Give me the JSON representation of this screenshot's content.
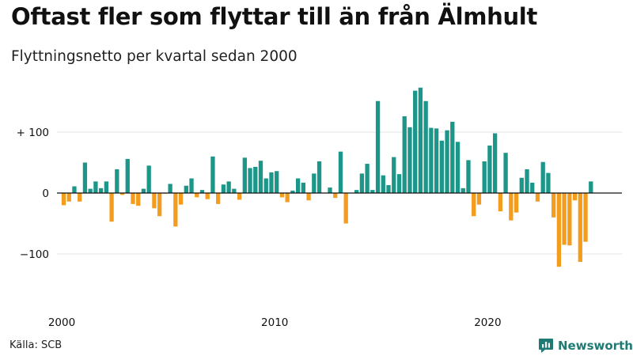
{
  "header": {
    "title": "Oftast fler som flyttar till än från Älmhult",
    "subtitle": "Flyttningsnetto per kvartal sedan 2000"
  },
  "footer": {
    "source": "Källa: SCB",
    "brand": "Newsworthy"
  },
  "colors": {
    "positive": "#1b9688",
    "negative": "#f39c1d",
    "grid": "#e3e3e3",
    "zero": "#111111",
    "brand": "#1f7a74"
  },
  "chart_data": {
    "type": "bar",
    "title": "Oftast fler som flyttar till än från Älmhult",
    "subtitle": "Flyttningsnetto per kvartal sedan 2000",
    "start_year": 2000,
    "period": "quarter",
    "ylim": [
      -150,
      175
    ],
    "yticks": [
      {
        "value": 100,
        "label": "+ 100"
      },
      {
        "value": 0,
        "label": "0"
      },
      {
        "value": -100,
        "label": "−100"
      }
    ],
    "xticks": [
      {
        "year": 2000,
        "label": "2000"
      },
      {
        "year": 2010,
        "label": "2010"
      },
      {
        "year": 2020,
        "label": "2020"
      }
    ],
    "values": [
      -20,
      -14,
      11,
      -14,
      50,
      7,
      19,
      8,
      19,
      -47,
      39,
      -3,
      56,
      -18,
      -21,
      7,
      45,
      -25,
      -38,
      -1,
      15,
      -55,
      -19,
      12,
      24,
      -7,
      5,
      -10,
      60,
      -18,
      14,
      19,
      7,
      -11,
      58,
      41,
      43,
      53,
      24,
      34,
      36,
      -7,
      -15,
      4,
      24,
      17,
      -12,
      32,
      52,
      0,
      9,
      -8,
      68,
      -50,
      0,
      5,
      32,
      48,
      5,
      151,
      29,
      13,
      59,
      31,
      126,
      108,
      168,
      173,
      151,
      107,
      106,
      86,
      103,
      117,
      84,
      8,
      54,
      -38,
      -19,
      52,
      78,
      98,
      -30,
      66,
      -45,
      -32,
      25,
      39,
      17,
      -14,
      51,
      33,
      -40,
      -121,
      -85,
      -86,
      -12,
      -113,
      -80,
      19
    ]
  }
}
